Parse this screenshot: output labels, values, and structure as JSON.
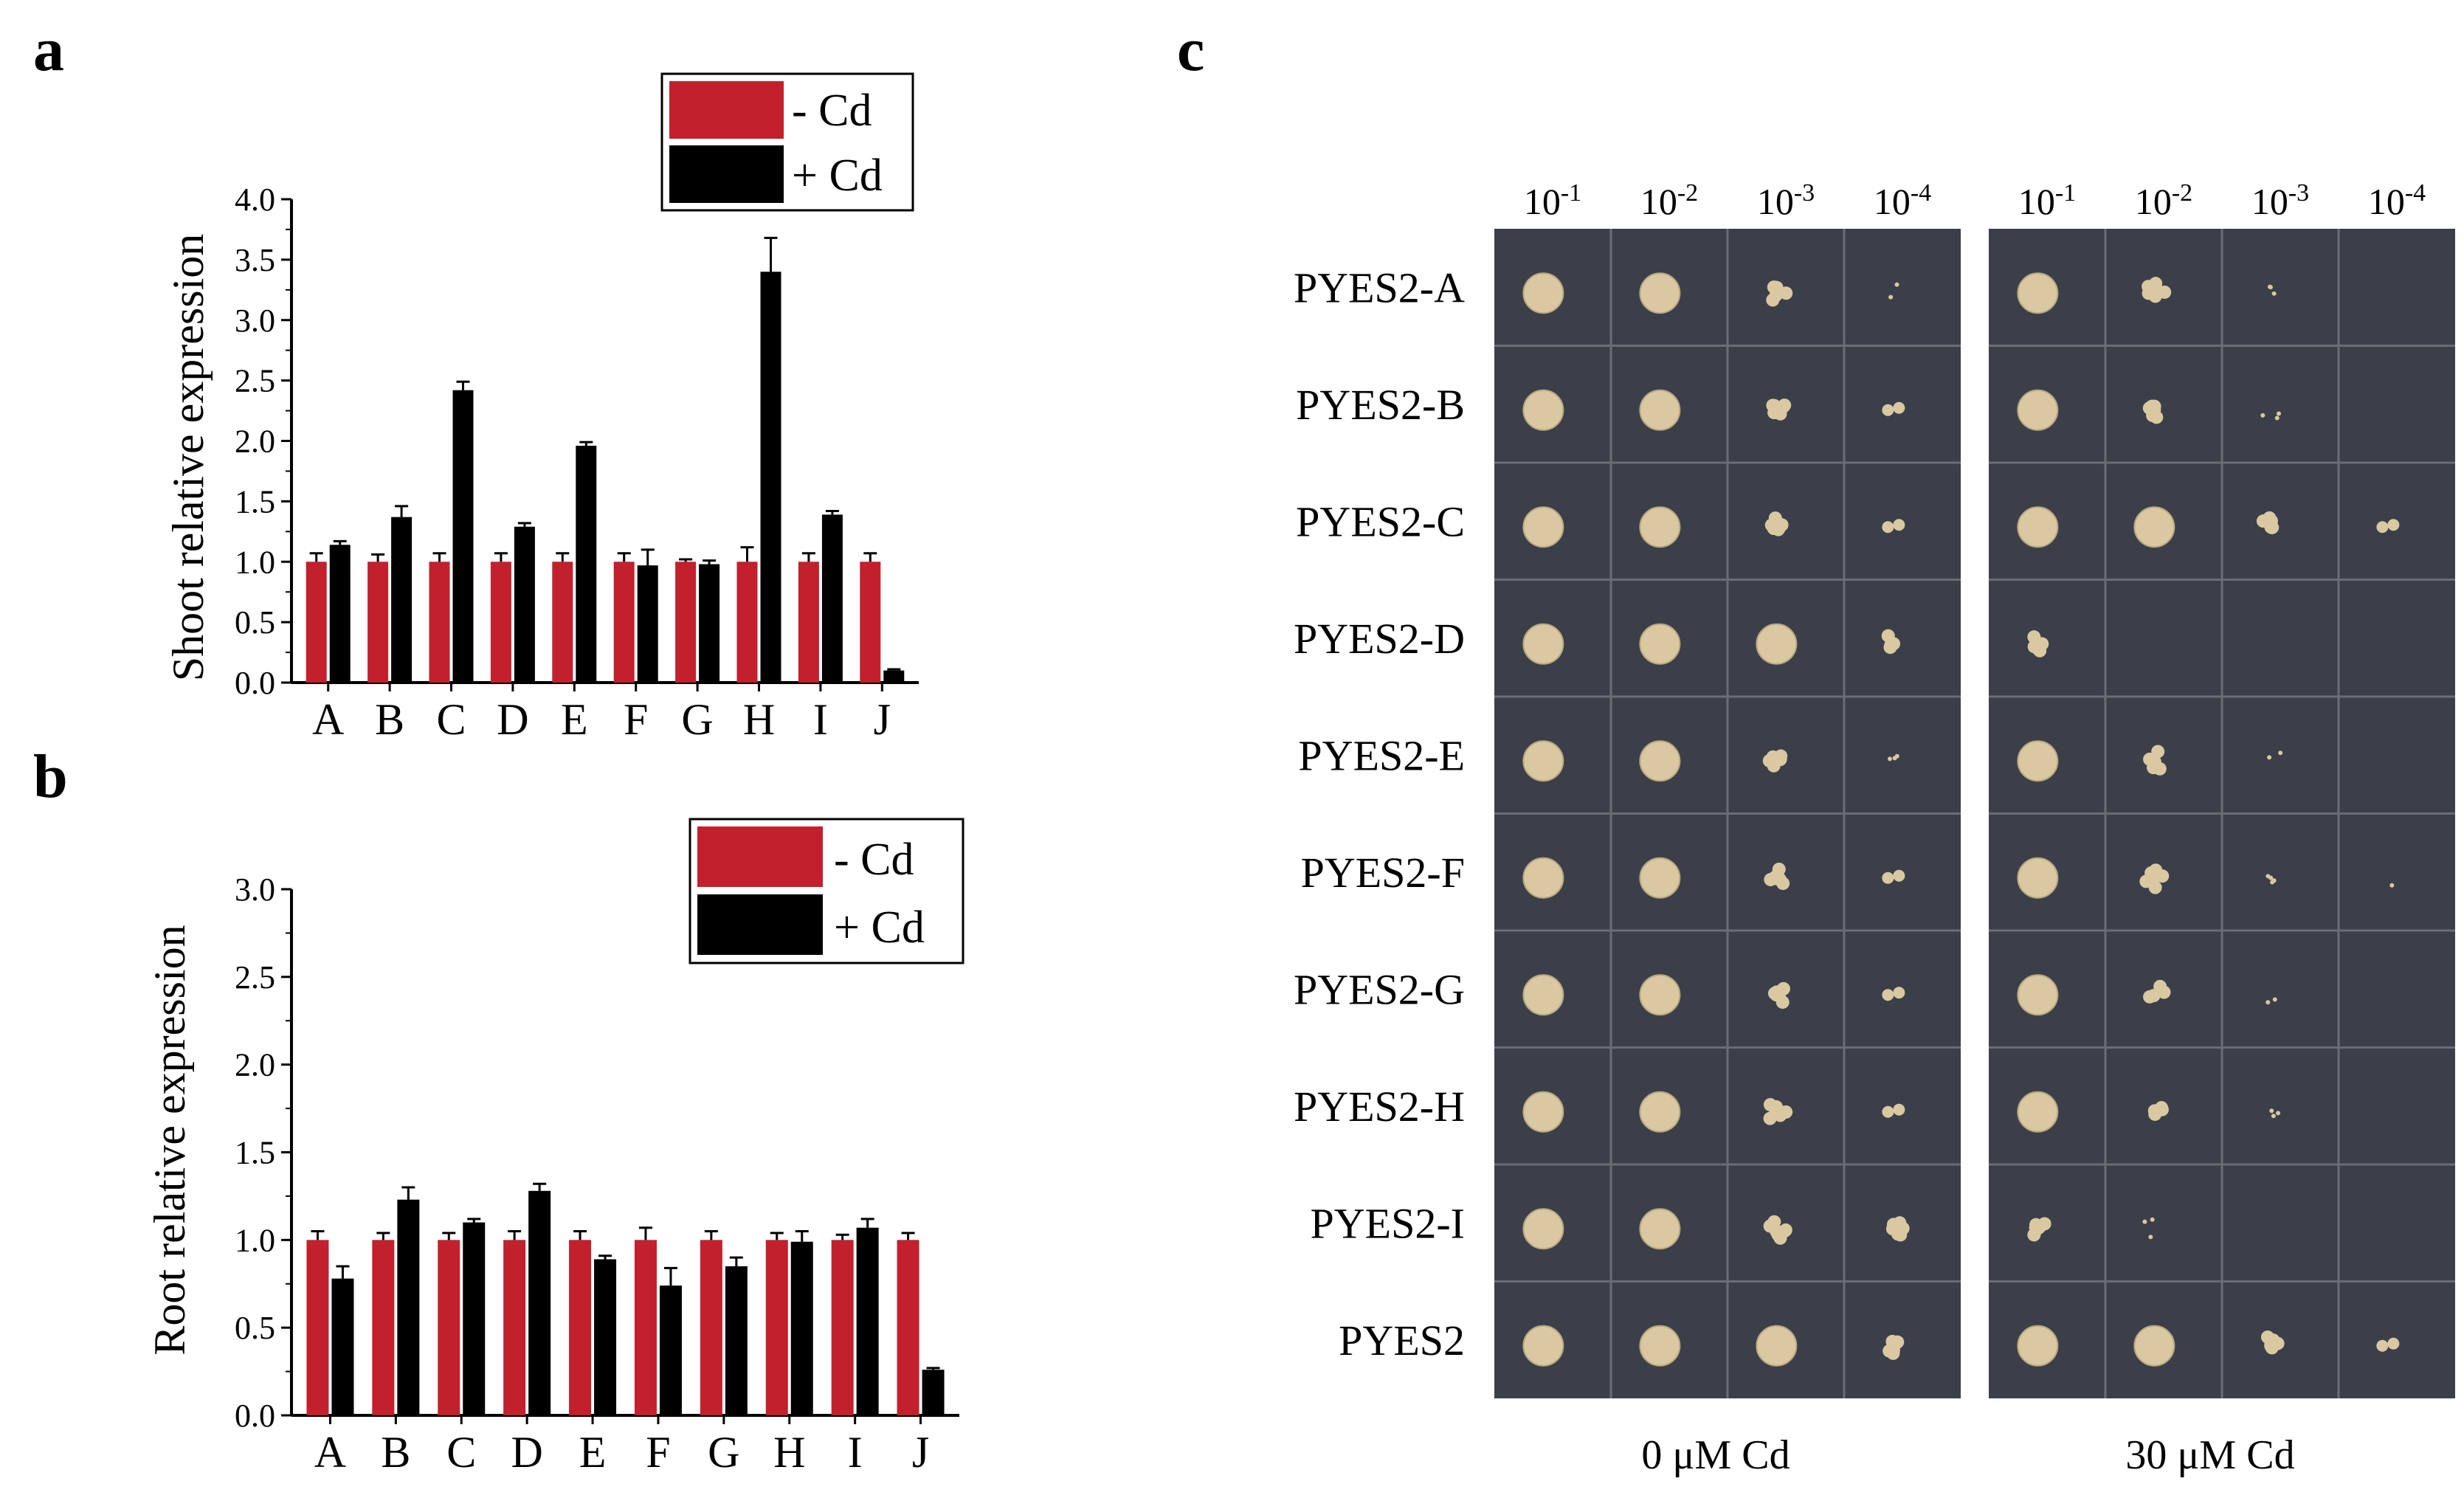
{
  "panel_labels": {
    "a": "a",
    "b": "b",
    "c": "c"
  },
  "colors": {
    "minus_cd": "#c2202c",
    "plus_cd": "#000000",
    "plate": "#3b3f4a",
    "plate_light": "#4a4e58",
    "colony": "#d9c8a0"
  },
  "chart_data": [
    {
      "type": "bar",
      "panel": "a",
      "ylabel": "Shoot relative expression",
      "ylim": [
        0,
        4.0
      ],
      "yticks": [
        "0.0",
        "0.5",
        "1.0",
        "1.5",
        "2.0",
        "2.5",
        "3.0",
        "3.5",
        "4.0"
      ],
      "categories": [
        "A",
        "B",
        "C",
        "D",
        "E",
        "F",
        "G",
        "H",
        "I",
        "J"
      ],
      "legend": [
        "- Cd",
        "+ Cd"
      ],
      "legend_position": "top-right",
      "series": [
        {
          "name": "- Cd",
          "values": [
            1.0,
            1.0,
            1.0,
            1.0,
            1.0,
            1.0,
            1.0,
            1.0,
            1.0,
            1.0
          ],
          "errors": [
            0.07,
            0.06,
            0.07,
            0.07,
            0.07,
            0.07,
            0.02,
            0.12,
            0.07,
            0.07
          ]
        },
        {
          "name": "+ Cd",
          "values": [
            1.14,
            1.37,
            2.42,
            1.29,
            1.96,
            0.97,
            0.98,
            3.4,
            1.39,
            0.1
          ],
          "errors": [
            0.03,
            0.09,
            0.07,
            0.03,
            0.03,
            0.13,
            0.03,
            0.28,
            0.03,
            0.01
          ]
        }
      ]
    },
    {
      "type": "bar",
      "panel": "b",
      "ylabel": "Root relative expression",
      "ylim": [
        0,
        3.0
      ],
      "yticks": [
        "0.0",
        "0.5",
        "1.0",
        "1.5",
        "2.0",
        "2.5",
        "3.0"
      ],
      "categories": [
        "A",
        "B",
        "C",
        "D",
        "E",
        "F",
        "G",
        "H",
        "I",
        "J"
      ],
      "legend": [
        "- Cd",
        "+ Cd"
      ],
      "legend_position": "top-right",
      "series": [
        {
          "name": "- Cd",
          "values": [
            1.0,
            1.0,
            1.0,
            1.0,
            1.0,
            1.0,
            1.0,
            1.0,
            1.0,
            1.0
          ],
          "errors": [
            0.05,
            0.04,
            0.04,
            0.05,
            0.05,
            0.07,
            0.05,
            0.04,
            0.03,
            0.04
          ]
        },
        {
          "name": "+ Cd",
          "values": [
            0.78,
            1.23,
            1.1,
            1.28,
            0.89,
            0.74,
            0.85,
            0.99,
            1.07,
            0.26
          ],
          "errors": [
            0.07,
            0.07,
            0.02,
            0.04,
            0.02,
            0.1,
            0.05,
            0.06,
            0.05,
            0.01
          ]
        }
      ]
    }
  ],
  "spot_assay": {
    "panel": "c",
    "dilutions": [
      [
        "10",
        "-1"
      ],
      [
        "10",
        "-2"
      ],
      [
        "10",
        "-3"
      ],
      [
        "10",
        "-4"
      ]
    ],
    "strains": [
      "PYES2-A",
      "PYES2-B",
      "PYES2-C",
      "PYES2-D",
      "PYES2-E",
      "PYES2-F",
      "PYES2-G",
      "PYES2-H",
      "PYES2-I",
      "PYES2"
    ],
    "conditions": [
      "0 μM Cd",
      "30 μM Cd"
    ],
    "growth_0": [
      [
        3,
        3,
        2,
        0.3
      ],
      [
        3,
        3,
        2,
        1
      ],
      [
        3,
        3,
        2,
        1
      ],
      [
        3,
        3,
        3,
        2
      ],
      [
        3,
        3,
        2,
        0.5
      ],
      [
        3,
        3,
        2,
        1
      ],
      [
        3,
        3,
        2,
        1
      ],
      [
        3,
        3,
        2,
        1
      ],
      [
        3,
        3,
        2,
        2
      ],
      [
        3,
        3,
        3,
        2
      ]
    ],
    "growth_30": [
      [
        3,
        2,
        0.5,
        0
      ],
      [
        3,
        2,
        0.5,
        0
      ],
      [
        3,
        3,
        2,
        1
      ],
      [
        2,
        0,
        0,
        0
      ],
      [
        3,
        2,
        0.3,
        0
      ],
      [
        3,
        2,
        0.6,
        0.2
      ],
      [
        3,
        1.5,
        0.3,
        0
      ],
      [
        3,
        1.5,
        0.5,
        0
      ],
      [
        2,
        0.5,
        0,
        0
      ],
      [
        3,
        3,
        2,
        1
      ]
    ]
  }
}
